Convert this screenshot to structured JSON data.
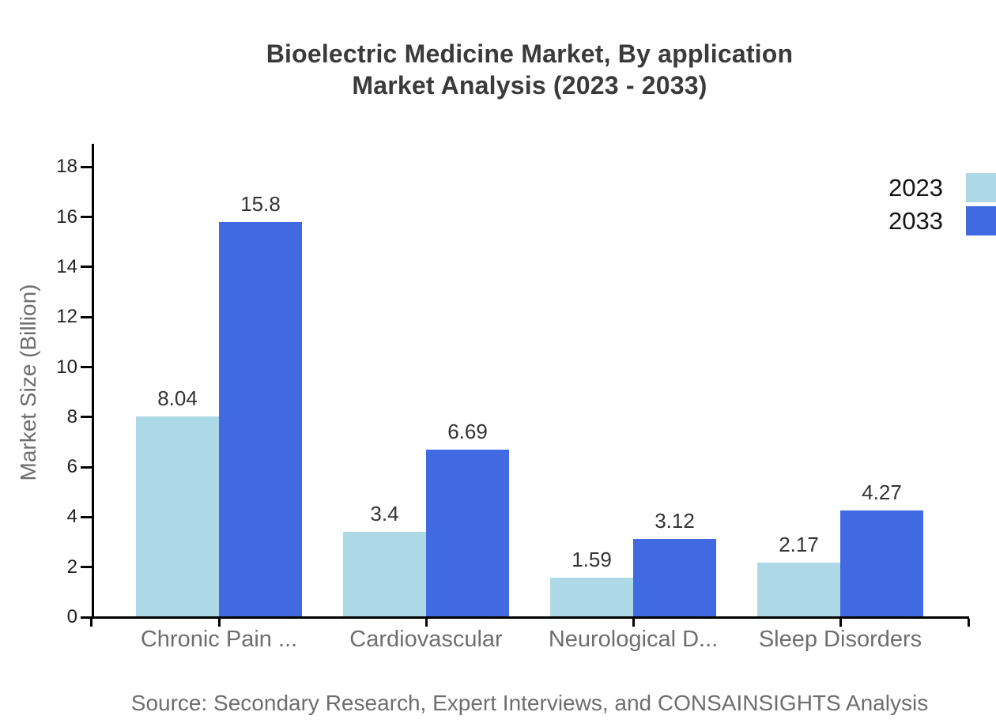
{
  "title": {
    "line1": "Bioelectric Medicine Market, By application",
    "line2": "Market Analysis (2023 - 2033)"
  },
  "y_axis": {
    "label": "Market Size (Billion)",
    "ticks": [
      0,
      2,
      4,
      6,
      8,
      10,
      12,
      14,
      16,
      18
    ]
  },
  "legend": {
    "position": "top-right",
    "items": [
      {
        "label": "2023",
        "color": "#ADD8E6"
      },
      {
        "label": "2033",
        "color": "#4169E1"
      }
    ]
  },
  "source_note": "Source: Secondary Research, Expert Interviews, and CONSAINSIGHTS Analysis",
  "chart_data": {
    "type": "bar",
    "title": "Bioelectric Medicine Market, By application Market Analysis (2023 - 2033)",
    "categories": [
      "Chronic Pain ...",
      "Cardiovascular",
      "Neurological D...",
      "Sleep Disorders"
    ],
    "series": [
      {
        "name": "2023",
        "color": "#ADD8E6",
        "values": [
          8.04,
          3.4,
          1.59,
          2.17
        ]
      },
      {
        "name": "2033",
        "color": "#4169E1",
        "values": [
          15.8,
          6.69,
          3.12,
          4.27
        ]
      }
    ],
    "xlabel": "",
    "ylabel": "Market Size (Billion)",
    "ylim": [
      0,
      18
    ],
    "ytick_step": 2,
    "grid": false,
    "legend_position": "top-right",
    "value_labels": true,
    "source_note": "Source: Secondary Research, Expert Interviews, and CONSAINSIGHTS Analysis"
  }
}
